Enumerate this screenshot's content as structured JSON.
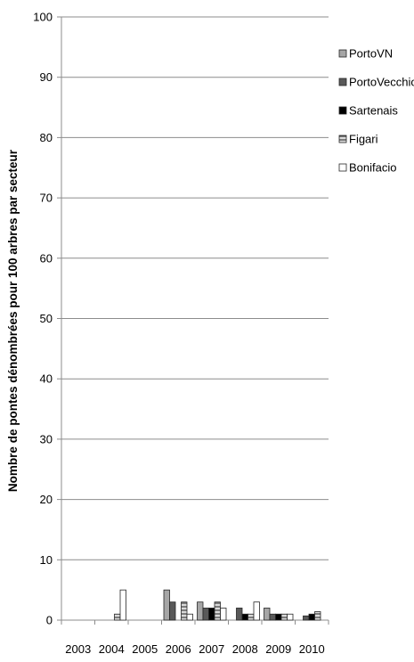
{
  "chart_data": {
    "type": "bar",
    "title": "",
    "xlabel": "",
    "ylabel": "Nombre de pontes dénombrées pour 100 arbres par secteur",
    "categories": [
      "2003",
      "2004",
      "2005",
      "2006",
      "2007",
      "2008",
      "2009",
      "2010"
    ],
    "ylim": [
      0,
      100
    ],
    "yticks": [
      0,
      10,
      20,
      30,
      40,
      50,
      60,
      70,
      80,
      90,
      100
    ],
    "grid": true,
    "legend_position": "right",
    "series": [
      {
        "name": "PortoVN",
        "color": "#a6a6a6",
        "pattern": "solid",
        "values": [
          0,
          0,
          0,
          5,
          3,
          0,
          2,
          0
        ]
      },
      {
        "name": "PortoVecchio",
        "color": "#595959",
        "pattern": "solid",
        "values": [
          0,
          0,
          0,
          3,
          2,
          2,
          1,
          0.7
        ]
      },
      {
        "name": "Sartenais",
        "color": "#000000",
        "pattern": "solid",
        "values": [
          0,
          0,
          0,
          0,
          2,
          1,
          1,
          1
        ]
      },
      {
        "name": "Figari",
        "color": "#808080",
        "pattern": "horizontal",
        "values": [
          0,
          1,
          0,
          3,
          3,
          1,
          1,
          1.4
        ]
      },
      {
        "name": "Bonifacio",
        "color": "#ffffff",
        "pattern": "solid",
        "values": [
          0,
          5,
          0,
          1,
          2,
          3,
          1,
          0
        ]
      }
    ]
  }
}
